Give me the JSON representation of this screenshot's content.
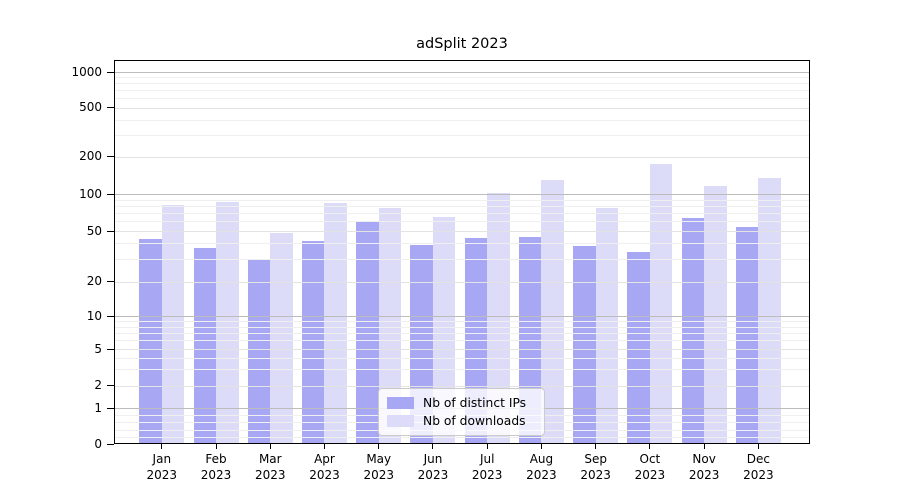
{
  "chart_data": {
    "type": "bar",
    "title": "adSplit 2023",
    "categories": [
      "Jan",
      "Feb",
      "Mar",
      "Apr",
      "May",
      "Jun",
      "Jul",
      "Aug",
      "Sep",
      "Oct",
      "Nov",
      "Dec"
    ],
    "year_label": "2023",
    "series": [
      {
        "name": "Nb of distinct IPs",
        "color": "#a7a7f3",
        "values": [
          43,
          37,
          30,
          42,
          59,
          39,
          44,
          45,
          38,
          34,
          64,
          54
        ]
      },
      {
        "name": "Nb of downloads",
        "color": "#dcdcf8",
        "values": [
          81,
          87,
          48,
          85,
          77,
          65,
          102,
          130,
          77,
          175,
          117,
          136
        ]
      }
    ],
    "yscale": "symlog",
    "ylim": [
      0,
      1250
    ],
    "yticks": [
      1000,
      500,
      200,
      100,
      50,
      20,
      10,
      5,
      2,
      1,
      0
    ],
    "ytick_labels": [
      "1000",
      "500",
      "200",
      "100",
      "50",
      "20",
      "10",
      "5",
      "2",
      "1",
      "0"
    ],
    "minor_gridline_values": [
      0.2,
      0.4,
      0.6,
      0.8,
      3,
      4,
      6,
      7,
      8,
      9,
      30,
      40,
      60,
      70,
      80,
      90,
      300,
      400,
      600,
      700,
      800,
      900
    ],
    "grid": true,
    "legend_position": "lower center",
    "xlabel": "",
    "ylabel": ""
  },
  "colors": {
    "background": "#ffffff",
    "axis": "#000000",
    "grid_major_pow10": "#bcbcbc",
    "grid_major_other": "#e3e3e3",
    "grid_minor": "#efefef"
  }
}
